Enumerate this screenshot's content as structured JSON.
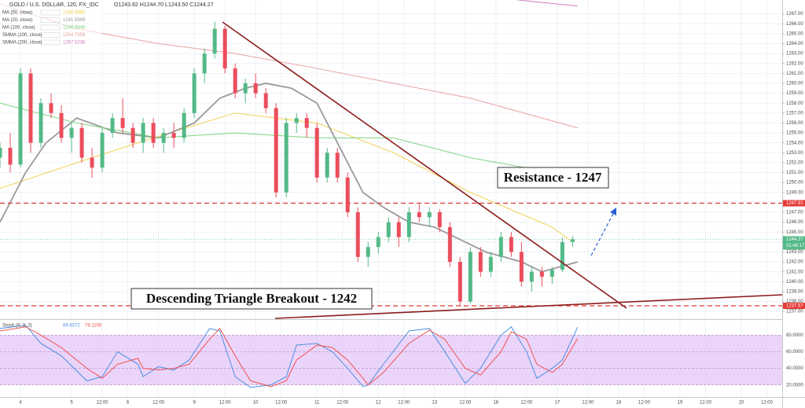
{
  "chart_data": [
    {
      "type": "candlestick",
      "title": "GOLD / U.S. DOLLAR, 120, FX_IDC",
      "ohlc_label": "O1243.82 H1244.70 L1243.50 C1244.27",
      "x": [
        0,
        2,
        4,
        6,
        8,
        10,
        12,
        14,
        16,
        18,
        20,
        22,
        24,
        26,
        28,
        30,
        32,
        34,
        36,
        38,
        40,
        42,
        44,
        46,
        48,
        50,
        52,
        54,
        56,
        58,
        60,
        62,
        64,
        66,
        68,
        70,
        72,
        74,
        76,
        78,
        80,
        82,
        84,
        86,
        88,
        90,
        92,
        94,
        96,
        98,
        100,
        102,
        104,
        106,
        108,
        110,
        112
      ],
      "open": [
        1252.5,
        1253.5,
        1251.8,
        1261,
        1254,
        1258,
        1257,
        1254.5,
        1255.5,
        1252.5,
        1251.5,
        1255,
        1256.5,
        1255.5,
        1254,
        1256,
        1254,
        1255,
        1254.5,
        1257,
        1261,
        1263,
        1265.5,
        1261.5,
        1259,
        1260,
        1259,
        1257.5,
        1249,
        1256,
        1256.5,
        1255.5,
        1250.5,
        1253,
        1250.5,
        1247,
        1242.5,
        1243.5,
        1244.5,
        1246,
        1244.5,
        1247,
        1246.5,
        1247,
        1245.5,
        1242,
        1238,
        1243,
        1241,
        1242.5,
        1244.5,
        1243,
        1240,
        1241,
        1240.5,
        1241.2,
        1244
      ],
      "high": [
        1254,
        1255,
        1261.5,
        1261.5,
        1258.5,
        1259,
        1257.8,
        1256,
        1256,
        1253.5,
        1255.5,
        1257,
        1258.5,
        1256,
        1256.5,
        1256.5,
        1255.5,
        1256,
        1257.5,
        1261.5,
        1263.5,
        1266.2,
        1265.8,
        1262,
        1260.5,
        1261,
        1259.5,
        1258,
        1256.5,
        1257,
        1257,
        1256,
        1253.5,
        1253.5,
        1251,
        1247.5,
        1244,
        1245,
        1246.5,
        1246.5,
        1247.5,
        1247.8,
        1247.5,
        1247.3,
        1246,
        1242.5,
        1243.5,
        1243.5,
        1243,
        1245,
        1245,
        1244,
        1241.5,
        1241.5,
        1241.5,
        1244.5,
        1244.6
      ],
      "low": [
        1251.5,
        1251,
        1251.5,
        1253,
        1253.5,
        1256.5,
        1254,
        1253,
        1252,
        1250.5,
        1251,
        1254.5,
        1255,
        1253.5,
        1253,
        1253.5,
        1253,
        1253.5,
        1254,
        1256.5,
        1260,
        1262.5,
        1261,
        1258.5,
        1258,
        1258.5,
        1257,
        1248.5,
        1248.5,
        1255,
        1254.5,
        1250,
        1250,
        1250,
        1246.5,
        1242,
        1241.5,
        1242.8,
        1244,
        1243.5,
        1244,
        1246,
        1245.5,
        1245,
        1241.5,
        1237.5,
        1237.8,
        1240.5,
        1240.5,
        1242,
        1242.5,
        1239.5,
        1239,
        1239.5,
        1239.8,
        1241,
        1243.5
      ],
      "close": [
        1253.5,
        1251.8,
        1261,
        1254,
        1258,
        1257,
        1254.5,
        1255.5,
        1252.5,
        1251.5,
        1255,
        1256.5,
        1255.5,
        1254,
        1256,
        1254,
        1255,
        1254.5,
        1257,
        1261,
        1263,
        1265.5,
        1261.5,
        1259,
        1260,
        1259,
        1257.5,
        1249,
        1256,
        1256.5,
        1255.5,
        1250.5,
        1253,
        1250.5,
        1247,
        1242.5,
        1243.5,
        1244.5,
        1246,
        1244.5,
        1247,
        1246.5,
        1247,
        1245.5,
        1242,
        1238,
        1243,
        1241,
        1242.5,
        1244.5,
        1243,
        1240,
        1241,
        1240.5,
        1241.2,
        1244,
        1244.27
      ],
      "up_color": "#53b987",
      "down_color": "#eb4d5c",
      "xlim": [
        0,
        153
      ],
      "xticks": [
        {
          "value": 4,
          "label": "4"
        },
        {
          "value": 14,
          "label": "5"
        },
        {
          "value": 20,
          "label": "12:00"
        },
        {
          "value": 25,
          "label": "6"
        },
        {
          "value": 31,
          "label": "12:00"
        },
        {
          "value": 38,
          "label": "9"
        },
        {
          "value": 44,
          "label": "12:00"
        },
        {
          "value": 50,
          "label": "10"
        },
        {
          "value": 55,
          "label": "12:00"
        },
        {
          "value": 62,
          "label": "11"
        },
        {
          "value": 67,
          "label": "12:00"
        },
        {
          "value": 74,
          "label": "12"
        },
        {
          "value": 79,
          "label": "12:00"
        },
        {
          "value": 85,
          "label": "13"
        },
        {
          "value": 91,
          "label": "12:00"
        },
        {
          "value": 97,
          "label": "16"
        },
        {
          "value": 103,
          "label": "12:00"
        },
        {
          "value": 109,
          "label": "17"
        },
        {
          "value": 115,
          "label": "12:00"
        },
        {
          "value": 121,
          "label": "18"
        },
        {
          "value": 126,
          "label": "12:00"
        },
        {
          "value": 133,
          "label": "19"
        },
        {
          "value": 138,
          "label": "12:00"
        },
        {
          "value": 145,
          "label": "20"
        },
        {
          "value": 150,
          "label": "12:00"
        }
      ],
      "ylim": [
        1236.3,
        1268.4
      ],
      "yticks": [
        {
          "value": 1237,
          "label": "1237.00"
        },
        {
          "value": 1238,
          "label": "1238.00"
        },
        {
          "value": 1239,
          "label": "1239.00"
        },
        {
          "value": 1240,
          "label": "1240.00"
        },
        {
          "value": 1241,
          "label": "1241.00"
        },
        {
          "value": 1242,
          "label": "1242.00"
        },
        {
          "value": 1243,
          "label": "1243.00"
        },
        {
          "value": 1244,
          "label": "1244.00"
        },
        {
          "value": 1245,
          "label": "1245.00"
        },
        {
          "value": 1246,
          "label": "1246.00"
        },
        {
          "value": 1247,
          "label": "1247.00"
        },
        {
          "value": 1248,
          "label": "1248.00"
        },
        {
          "value": 1249,
          "label": "1249.00"
        },
        {
          "value": 1250,
          "label": "1250.00"
        },
        {
          "value": 1251,
          "label": "1251.00"
        },
        {
          "value": 1252,
          "label": "1252.00"
        },
        {
          "value": 1253,
          "label": "1253.00"
        },
        {
          "value": 1254,
          "label": "1254.00"
        },
        {
          "value": 1255,
          "label": "1255.00"
        },
        {
          "value": 1256,
          "label": "1256.00"
        },
        {
          "value": 1257,
          "label": "1257.00"
        },
        {
          "value": 1258,
          "label": "1258.00"
        },
        {
          "value": 1259,
          "label": "1259.00"
        },
        {
          "value": 1260,
          "label": "1260.00"
        },
        {
          "value": 1261,
          "label": "1261.00"
        },
        {
          "value": 1262,
          "label": "1262.00"
        },
        {
          "value": 1263,
          "label": "1263.00"
        },
        {
          "value": 1264,
          "label": "1264.00"
        },
        {
          "value": 1265,
          "label": "1265.00"
        },
        {
          "value": 1266,
          "label": "1266.00"
        },
        {
          "value": 1267,
          "label": "1267.00"
        }
      ],
      "grid": true,
      "series": [
        {
          "name": "MA (50, close)",
          "value_label": "1245.9960",
          "color": "#f2d04c",
          "x": [
            0,
            15,
            30,
            46,
            62,
            77,
            92,
            108,
            112
          ],
          "values": [
            1249.4,
            1252,
            1254.5,
            1257,
            1256,
            1253,
            1249,
            1245.5,
            1244
          ]
        },
        {
          "name": "MA (20, close)",
          "value_label": "1241.9999",
          "color": "#9a9a9a",
          "x": [
            0,
            5,
            9,
            15,
            23,
            31,
            38,
            43,
            48,
            52,
            57,
            62,
            66,
            71,
            75,
            80,
            85,
            89,
            95,
            102,
            106,
            113
          ],
          "values": [
            1246,
            1251,
            1254,
            1256.5,
            1255,
            1254.5,
            1256,
            1258.5,
            1259.5,
            1260,
            1259.5,
            1258,
            1254,
            1249,
            1247.5,
            1246,
            1245.5,
            1244.5,
            1243,
            1242,
            1241,
            1242
          ]
        },
        {
          "name": "MA (100, close)",
          "value_label": "1249.9849",
          "color": "#7ed27e",
          "x": [
            0,
            15,
            31,
            46,
            62,
            77,
            92,
            108
          ],
          "values": [
            1258,
            1256,
            1254.5,
            1255,
            1254.5,
            1254.5,
            1252.5,
            1251
          ]
        },
        {
          "name": "SMMA (100, close)",
          "value_label": "1254.7659",
          "color": "#e9a3a3",
          "x": [
            0,
            15,
            31,
            46,
            62,
            77,
            92,
            113
          ],
          "values": [
            1268,
            1265.5,
            1264,
            1263,
            1261.5,
            1260,
            1258.5,
            1255.5
          ]
        },
        {
          "name": "SMMA (200, close)",
          "value_label": "1267.5236",
          "color": "#cf7fbd",
          "x": [
            98,
            105,
            113
          ],
          "values": [
            1268.6,
            1268.2,
            1267.8
          ]
        }
      ],
      "levels": [
        {
          "value": 1247.91,
          "label": "1247.91",
          "color": "#e53935"
        },
        {
          "value": 1237.57,
          "label": "1237.57",
          "color": "#e53935"
        }
      ],
      "last_price": {
        "value": 1244.27,
        "label": "1244.27",
        "color": "#53b987"
      },
      "countdown": "01:46:17",
      "annotations": [
        "Resistance - 1247",
        "Descending Triangle Breakout - 1242"
      ]
    },
    {
      "type": "line",
      "title": "Stoch (9, 3, 3)",
      "x": [
        0,
        5,
        8,
        12,
        17,
        20,
        23,
        27,
        28,
        31,
        34,
        37,
        41,
        43,
        46,
        49,
        53,
        56,
        58,
        62,
        65,
        68,
        71,
        72,
        75,
        80,
        84,
        87,
        91,
        94,
        98,
        100,
        103,
        105,
        108,
        110,
        113
      ],
      "xlim": [
        0,
        153
      ],
      "ylim": [
        5.5,
        97.3
      ],
      "yticks": [
        {
          "value": 20,
          "label": "20.0000"
        },
        {
          "value": 40,
          "label": "40.0000"
        },
        {
          "value": 60,
          "label": "60.0000"
        },
        {
          "value": 80,
          "label": "80.0000"
        }
      ],
      "band": [
        20,
        80
      ],
      "band_color": "#e6c9f7",
      "series": [
        {
          "name": "%K",
          "value_label": "89.6372",
          "color": "#4a90e2",
          "values": [
            88,
            92,
            70,
            55,
            25,
            30,
            60,
            45,
            30,
            42,
            38,
            50,
            88,
            85,
            30,
            17,
            20,
            30,
            68,
            70,
            60,
            40,
            18,
            20,
            45,
            85,
            88,
            60,
            22,
            40,
            80,
            90,
            60,
            28,
            40,
            50,
            89.6372
          ]
        },
        {
          "name": "%D",
          "value_label": "76.1158",
          "color": "#ef5350",
          "values": [
            85,
            90,
            80,
            65,
            40,
            28,
            45,
            52,
            40,
            38,
            40,
            45,
            75,
            88,
            55,
            25,
            18,
            25,
            50,
            68,
            65,
            50,
            28,
            20,
            35,
            70,
            86,
            75,
            40,
            32,
            60,
            84,
            75,
            45,
            35,
            45,
            76.1158
          ]
        }
      ]
    }
  ]
}
